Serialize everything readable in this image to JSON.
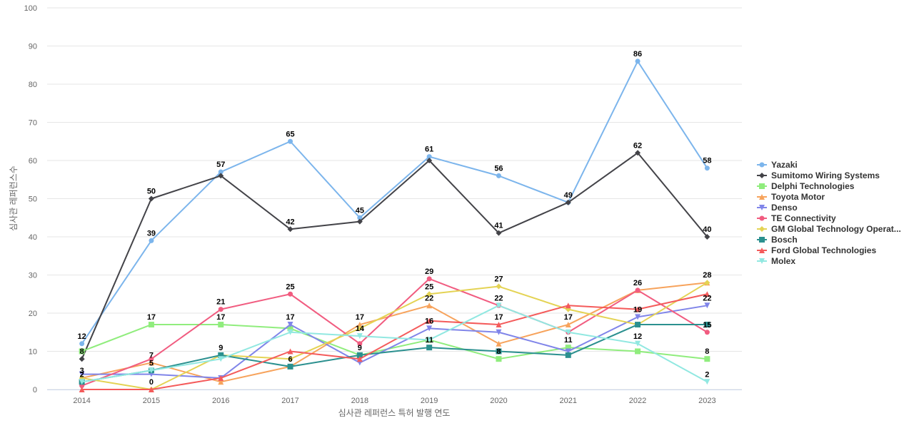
{
  "chart_data": {
    "type": "line",
    "title": "",
    "xlabel": "심사관 레퍼런스 특허 발행 연도",
    "ylabel": "심사관 레퍼런스수",
    "ylim": [
      0,
      100
    ],
    "yticks": [
      0,
      10,
      20,
      30,
      40,
      50,
      60,
      70,
      80,
      90,
      100
    ],
    "grid": true,
    "legend_position": "right",
    "x": [
      "2014",
      "2015",
      "2016",
      "2017",
      "2018",
      "2019",
      "2020",
      "2021",
      "2022",
      "2023"
    ],
    "series": [
      {
        "name": "Yazaki",
        "color": "#7cb5ec",
        "marker": "circle",
        "values": [
          12,
          39,
          57,
          65,
          45,
          61,
          56,
          49,
          86,
          58
        ]
      },
      {
        "name": "Sumitomo Wiring Systems",
        "color": "#434348",
        "marker": "diamond",
        "values": [
          8,
          50,
          56,
          42,
          44,
          60,
          41,
          49,
          62,
          40
        ]
      },
      {
        "name": "Delphi Technologies",
        "color": "#90ed7d",
        "marker": "square",
        "values": [
          10,
          17,
          17,
          16,
          9,
          13,
          8,
          11,
          10,
          8
        ]
      },
      {
        "name": "Toyota Motor",
        "color": "#f7a35c",
        "marker": "triangle",
        "values": [
          3,
          7,
          2,
          6,
          17,
          22,
          12,
          17,
          26,
          28
        ]
      },
      {
        "name": "Denso",
        "color": "#8085e9",
        "marker": "triangle-down",
        "values": [
          4,
          4,
          3,
          17,
          7,
          16,
          15,
          10,
          19,
          22
        ]
      },
      {
        "name": "TE Connectivity",
        "color": "#f15c80",
        "marker": "circle",
        "values": [
          1,
          8,
          21,
          25,
          12,
          29,
          22,
          15,
          26,
          15
        ]
      },
      {
        "name": "GM Global Technology Operat...",
        "color": "#e4d354",
        "marker": "diamond",
        "values": [
          3,
          0,
          9,
          8,
          16,
          25,
          27,
          21,
          17,
          28
        ]
      },
      {
        "name": "Bosch",
        "color": "#2b908f",
        "marker": "square",
        "values": [
          2,
          5,
          9,
          6,
          9,
          11,
          10,
          9,
          17,
          17
        ]
      },
      {
        "name": "Ford Global Technologies",
        "color": "#f45b5b",
        "marker": "triangle",
        "values": [
          0,
          0,
          3,
          10,
          8,
          18,
          17,
          22,
          21,
          25
        ]
      },
      {
        "name": "Molex",
        "color": "#91e8e1",
        "marker": "triangle-down",
        "values": [
          2,
          5,
          8,
          15,
          14,
          13,
          22,
          15,
          12,
          2
        ]
      }
    ],
    "labeled_points": [
      {
        "series": 0,
        "index": 0
      },
      {
        "series": 0,
        "index": 1
      },
      {
        "series": 0,
        "index": 2
      },
      {
        "series": 0,
        "index": 3
      },
      {
        "series": 0,
        "index": 4
      },
      {
        "series": 0,
        "index": 5
      },
      {
        "series": 0,
        "index": 6
      },
      {
        "series": 0,
        "index": 7
      },
      {
        "series": 0,
        "index": 8
      },
      {
        "series": 0,
        "index": 9
      },
      {
        "series": 1,
        "index": 0
      },
      {
        "series": 1,
        "index": 1
      },
      {
        "series": 1,
        "index": 3
      },
      {
        "series": 1,
        "index": 6
      },
      {
        "series": 1,
        "index": 8
      },
      {
        "series": 1,
        "index": 9
      },
      {
        "series": 2,
        "index": 1
      },
      {
        "series": 2,
        "index": 2
      },
      {
        "series": 2,
        "index": 6
      },
      {
        "series": 2,
        "index": 7
      },
      {
        "series": 2,
        "index": 9
      },
      {
        "series": 3,
        "index": 0
      },
      {
        "series": 3,
        "index": 1
      },
      {
        "series": 3,
        "index": 4
      },
      {
        "series": 3,
        "index": 5
      },
      {
        "series": 3,
        "index": 7
      },
      {
        "series": 3,
        "index": 9
      },
      {
        "series": 4,
        "index": 3
      },
      {
        "series": 4,
        "index": 5
      },
      {
        "series": 4,
        "index": 8
      },
      {
        "series": 4,
        "index": 9
      },
      {
        "series": 5,
        "index": 2
      },
      {
        "series": 5,
        "index": 3
      },
      {
        "series": 5,
        "index": 5
      },
      {
        "series": 5,
        "index": 8
      },
      {
        "series": 5,
        "index": 9
      },
      {
        "series": 6,
        "index": 2
      },
      {
        "series": 6,
        "index": 5
      },
      {
        "series": 6,
        "index": 6
      },
      {
        "series": 7,
        "index": 1
      },
      {
        "series": 7,
        "index": 3
      },
      {
        "series": 7,
        "index": 4
      },
      {
        "series": 7,
        "index": 5
      },
      {
        "series": 8,
        "index": 1
      },
      {
        "series": 8,
        "index": 6
      },
      {
        "series": 9,
        "index": 0
      },
      {
        "series": 9,
        "index": 4
      },
      {
        "series": 9,
        "index": 6
      },
      {
        "series": 9,
        "index": 8
      },
      {
        "series": 9,
        "index": 9
      }
    ]
  }
}
